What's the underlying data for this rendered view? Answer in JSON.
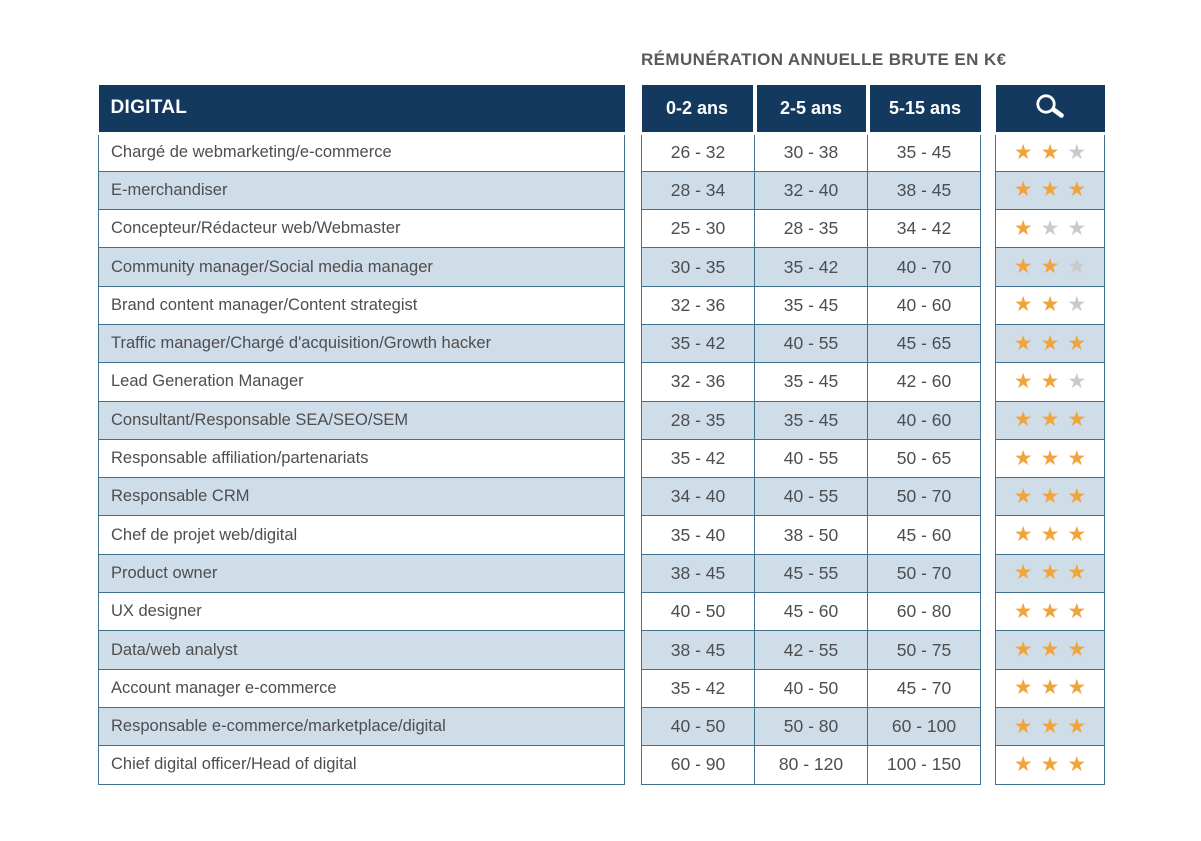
{
  "title": "RÉMUNÉRATION ANNUELLE BRUTE EN K€",
  "colors": {
    "header_navy": "#133a5e",
    "row_alt_blue": "#cfdde8",
    "cell_border": "#40718f",
    "star_gold": "#f2a43c",
    "star_gray": "#c8cacc",
    "body_text": "#4d4e50",
    "title_text": "#58595b",
    "header_text": "#ffffff"
  },
  "chart_data": {
    "type": "table",
    "title": "RÉMUNÉRATION ANNUELLE BRUTE EN K€",
    "category_header": "DIGITAL",
    "columns": [
      "0-2 ans",
      "2-5 ans",
      "5-15 ans"
    ],
    "rating_column": {
      "icon": "magnifier-icon",
      "max_stars": 3
    },
    "rows": [
      {
        "job": "Chargé de webmarketing/e-commerce",
        "salary_0_2": "26 - 32",
        "salary_2_5": "30 - 38",
        "salary_5_15": "35 - 45",
        "stars": 2
      },
      {
        "job": "E-merchandiser",
        "salary_0_2": "28 - 34",
        "salary_2_5": "32 - 40",
        "salary_5_15": "38 - 45",
        "stars": 3
      },
      {
        "job": "Concepteur/Rédacteur web/Webmaster",
        "salary_0_2": "25 - 30",
        "salary_2_5": "28 - 35",
        "salary_5_15": "34 - 42",
        "stars": 1
      },
      {
        "job": "Community manager/Social media manager",
        "salary_0_2": "30 - 35",
        "salary_2_5": "35 - 42",
        "salary_5_15": "40 - 70",
        "stars": 2
      },
      {
        "job": "Brand content manager/Content strategist",
        "salary_0_2": "32 - 36",
        "salary_2_5": "35 - 45",
        "salary_5_15": "40 - 60",
        "stars": 2
      },
      {
        "job": "Traffic manager/Chargé d'acquisition/Growth hacker",
        "salary_0_2": "35 - 42",
        "salary_2_5": "40 - 55",
        "salary_5_15": "45 - 65",
        "stars": 3
      },
      {
        "job": "Lead Generation Manager",
        "salary_0_2": "32 - 36",
        "salary_2_5": "35 - 45",
        "salary_5_15": "42 - 60",
        "stars": 2
      },
      {
        "job": "Consultant/Responsable SEA/SEO/SEM",
        "salary_0_2": "28 - 35",
        "salary_2_5": "35 - 45",
        "salary_5_15": "40 - 60",
        "stars": 3
      },
      {
        "job": "Responsable affiliation/partenariats",
        "salary_0_2": "35 - 42",
        "salary_2_5": "40 - 55",
        "salary_5_15": "50 - 65",
        "stars": 3
      },
      {
        "job": "Responsable CRM",
        "salary_0_2": "34 - 40",
        "salary_2_5": "40 - 55",
        "salary_5_15": "50 - 70",
        "stars": 3
      },
      {
        "job": "Chef de projet web/digital",
        "salary_0_2": "35 - 40",
        "salary_2_5": "38 - 50",
        "salary_5_15": "45 - 60",
        "stars": 3
      },
      {
        "job": "Product owner",
        "salary_0_2": "38 - 45",
        "salary_2_5": "45 - 55",
        "salary_5_15": "50 - 70",
        "stars": 3
      },
      {
        "job": "UX designer",
        "salary_0_2": "40 - 50",
        "salary_2_5": "45 - 60",
        "salary_5_15": "60 - 80",
        "stars": 3
      },
      {
        "job": "Data/web analyst",
        "salary_0_2": "38 - 45",
        "salary_2_5": "42 - 55",
        "salary_5_15": "50 - 75",
        "stars": 3
      },
      {
        "job": "Account manager e-commerce",
        "salary_0_2": "35 - 42",
        "salary_2_5": "40 - 50",
        "salary_5_15": "45 - 70",
        "stars": 3
      },
      {
        "job": "Responsable e-commerce/marketplace/digital",
        "salary_0_2": "40 - 50",
        "salary_2_5": "50 - 80",
        "salary_5_15": "60 - 100",
        "stars": 3
      },
      {
        "job": "Chief digital officer/Head of digital",
        "salary_0_2": "60 - 90",
        "salary_2_5": "80 - 120",
        "salary_5_15": "100 - 150",
        "stars": 3
      }
    ]
  }
}
